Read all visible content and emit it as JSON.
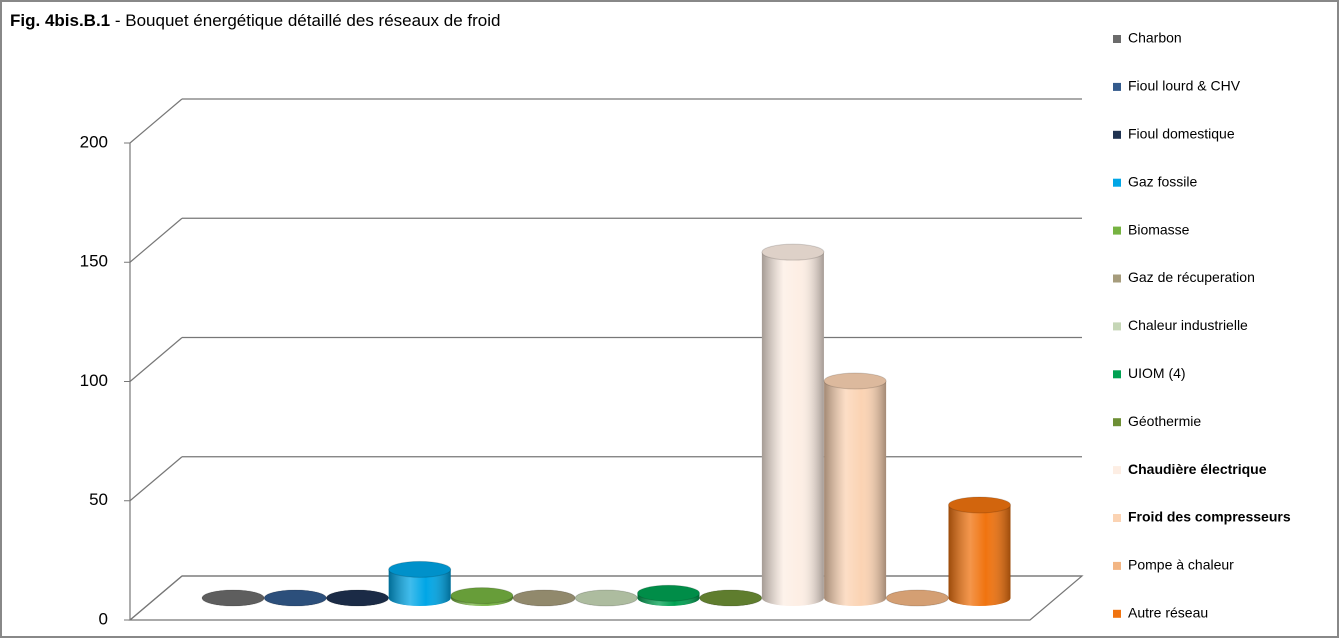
{
  "chart_data": {
    "type": "bar3d",
    "figure_label": "Fig. 4bis.B.1",
    "title": " - Bouquet énergétique détaillé des réseaux de froid",
    "ylim": [
      0,
      200
    ],
    "yticks": [
      0,
      50,
      100,
      150,
      200
    ],
    "grid": true,
    "legend": "right",
    "series": [
      {
        "name": "Charbon",
        "color": "#6b6b6b",
        "values": [
          0
        ]
      },
      {
        "name": "Fioul lourd & CHV",
        "color": "#335a8c",
        "values": [
          0
        ]
      },
      {
        "name": "Fioul domestique",
        "color": "#1f3250",
        "values": [
          0
        ]
      },
      {
        "name": "Gaz fossile",
        "color": "#00a6e6",
        "values": [
          12
        ]
      },
      {
        "name": "Biomasse",
        "color": "#76b341",
        "values": [
          1
        ]
      },
      {
        "name": "Gaz de récuperation",
        "color": "#a69c7c",
        "values": [
          0
        ]
      },
      {
        "name": "Chaleur industrielle",
        "color": "#c5d6b6",
        "values": [
          0
        ]
      },
      {
        "name": "UIOM (4)",
        "color": "#00a152",
        "values": [
          2
        ]
      },
      {
        "name": "Géothermie",
        "color": "#6d8f35",
        "values": [
          0
        ]
      },
      {
        "name": "Chaudière électrique",
        "color": "#fdeee4",
        "values": [
          145
        ],
        "bold": true
      },
      {
        "name": "Froid des compresseurs",
        "color": "#fbd3b3",
        "values": [
          91
        ],
        "bold": true
      },
      {
        "name": "Pompe à chaleur",
        "color": "#f2b583",
        "values": [
          0
        ]
      },
      {
        "name": "Autre réseau",
        "color": "#f0730f",
        "values": [
          39
        ]
      }
    ]
  }
}
